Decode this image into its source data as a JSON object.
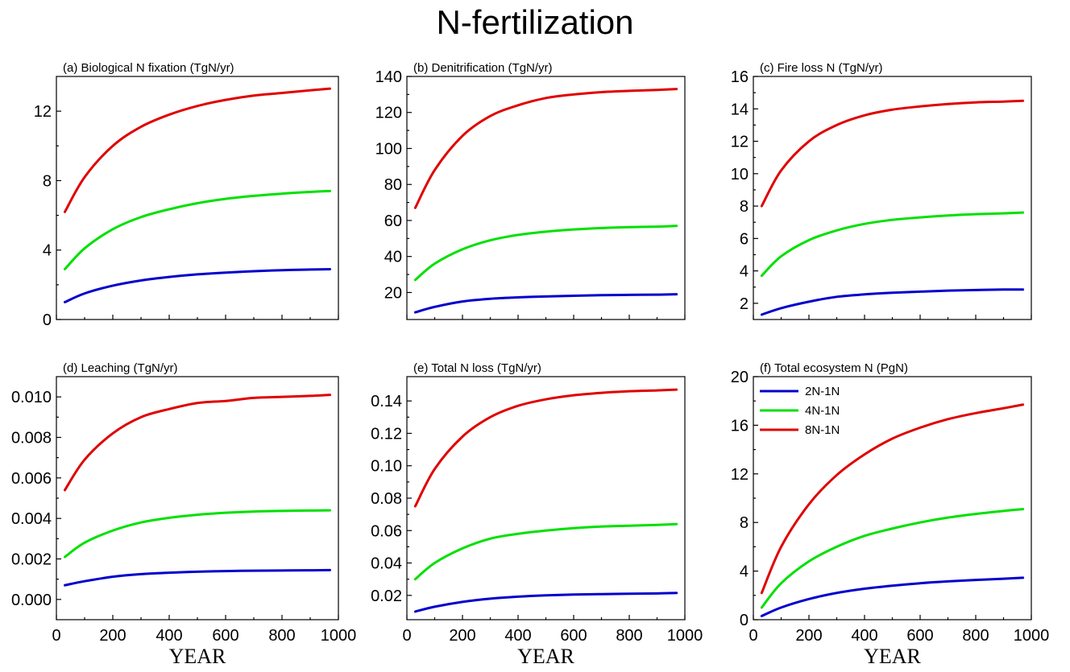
{
  "title": "N-fertilization",
  "colors": {
    "2N-1N": "#0000cc",
    "4N-1N": "#00e000",
    "8N-1N": "#e00000"
  },
  "chart_data": [
    {
      "type": "line",
      "title": "(a) Biological N fixation (TgN/yr)",
      "xlabel": "",
      "xlim": [
        0,
        1000
      ],
      "ylim": [
        0,
        14
      ],
      "yticks": [
        0,
        4,
        8,
        12
      ],
      "ytick_labels": [
        "0",
        "4",
        "8",
        "12"
      ],
      "xticks": [],
      "xtick_labels": [],
      "x": [
        30,
        100,
        200,
        300,
        400,
        500,
        600,
        700,
        800,
        900,
        970
      ],
      "series": [
        {
          "name": "2N-1N",
          "values": [
            1.0,
            1.5,
            1.95,
            2.25,
            2.45,
            2.6,
            2.7,
            2.78,
            2.84,
            2.88,
            2.9
          ]
        },
        {
          "name": "4N-1N",
          "values": [
            2.9,
            4.1,
            5.2,
            5.9,
            6.35,
            6.7,
            6.95,
            7.12,
            7.25,
            7.35,
            7.4
          ]
        },
        {
          "name": "8N-1N",
          "values": [
            6.2,
            8.2,
            10.0,
            11.1,
            11.8,
            12.3,
            12.65,
            12.9,
            13.05,
            13.2,
            13.3
          ]
        }
      ]
    },
    {
      "type": "line",
      "title": "(b) Denitrification (TgN/yr)",
      "xlabel": "",
      "xlim": [
        0,
        1000
      ],
      "ylim": [
        5,
        140
      ],
      "yticks": [
        20,
        40,
        60,
        80,
        100,
        120,
        140
      ],
      "ytick_labels": [
        "20",
        "40",
        "60",
        "80",
        "100",
        "120",
        "140"
      ],
      "xticks": [],
      "xtick_labels": [],
      "x": [
        30,
        100,
        200,
        300,
        400,
        500,
        600,
        700,
        800,
        900,
        970
      ],
      "series": [
        {
          "name": "2N-1N",
          "values": [
            9,
            12,
            15,
            16.5,
            17.3,
            17.8,
            18.2,
            18.5,
            18.7,
            18.8,
            19
          ]
        },
        {
          "name": "4N-1N",
          "values": [
            27,
            36,
            44,
            49,
            52,
            53.8,
            55,
            55.8,
            56.3,
            56.6,
            57
          ]
        },
        {
          "name": "8N-1N",
          "values": [
            67,
            88,
            107,
            118,
            124,
            128,
            130,
            131.3,
            132,
            132.5,
            133
          ]
        }
      ]
    },
    {
      "type": "line",
      "title": "(c) Fire loss N (TgN/yr)",
      "xlabel": "",
      "xlim": [
        0,
        1000
      ],
      "ylim": [
        1,
        16
      ],
      "yticks": [
        2,
        4,
        6,
        8,
        10,
        12,
        14,
        16
      ],
      "ytick_labels": [
        "2",
        "4",
        "6",
        "8",
        "10",
        "12",
        "14",
        "16"
      ],
      "xticks": [],
      "xtick_labels": [],
      "x": [
        30,
        100,
        200,
        300,
        400,
        500,
        600,
        700,
        800,
        900,
        970
      ],
      "series": [
        {
          "name": "2N-1N",
          "values": [
            1.3,
            1.7,
            2.1,
            2.4,
            2.55,
            2.65,
            2.72,
            2.78,
            2.82,
            2.85,
            2.85
          ]
        },
        {
          "name": "4N-1N",
          "values": [
            3.7,
            4.9,
            5.9,
            6.5,
            6.9,
            7.15,
            7.3,
            7.42,
            7.5,
            7.55,
            7.6
          ]
        },
        {
          "name": "8N-1N",
          "values": [
            8.0,
            10.2,
            12.0,
            13.0,
            13.6,
            13.95,
            14.15,
            14.3,
            14.4,
            14.45,
            14.5
          ]
        }
      ]
    },
    {
      "type": "line",
      "title": "(d) Leaching (TgN/yr)",
      "xlabel": "YEAR",
      "xlim": [
        0,
        1000
      ],
      "ylim": [
        -0.001,
        0.011
      ],
      "yticks": [
        0.0,
        0.002,
        0.004,
        0.006,
        0.008,
        0.01
      ],
      "ytick_labels": [
        "0.000",
        "0.002",
        "0.004",
        "0.006",
        "0.008",
        "0.010"
      ],
      "xticks": [
        0,
        200,
        400,
        600,
        800,
        1000
      ],
      "xtick_labels": [
        "0",
        "200",
        "400",
        "600",
        "800",
        "1000"
      ],
      "x": [
        30,
        100,
        200,
        300,
        400,
        500,
        600,
        700,
        800,
        900,
        970
      ],
      "series": [
        {
          "name": "2N-1N",
          "values": [
            0.0007,
            0.0009,
            0.00112,
            0.00125,
            0.00132,
            0.00137,
            0.0014,
            0.00142,
            0.00143,
            0.00144,
            0.00145
          ]
        },
        {
          "name": "4N-1N",
          "values": [
            0.0021,
            0.0028,
            0.0034,
            0.0038,
            0.00403,
            0.00418,
            0.00428,
            0.00434,
            0.00437,
            0.00439,
            0.0044
          ]
        },
        {
          "name": "8N-1N",
          "values": [
            0.0054,
            0.0069,
            0.0082,
            0.009,
            0.0094,
            0.0097,
            0.0098,
            0.00995,
            0.01,
            0.01005,
            0.0101
          ]
        }
      ]
    },
    {
      "type": "line",
      "title": "(e) Total N loss (TgN/yr)",
      "xlabel": "YEAR",
      "xlim": [
        0,
        1000
      ],
      "ylim": [
        0.005,
        0.155
      ],
      "yticks": [
        0.02,
        0.04,
        0.06,
        0.08,
        0.1,
        0.12,
        0.14
      ],
      "ytick_labels": [
        "0.02",
        "0.04",
        "0.06",
        "0.08",
        "0.10",
        "0.12",
        "0.14"
      ],
      "xticks": [
        0,
        200,
        400,
        600,
        800,
        1000
      ],
      "xtick_labels": [
        "0",
        "200",
        "400",
        "600",
        "800",
        "1000"
      ],
      "x": [
        30,
        100,
        200,
        300,
        400,
        500,
        600,
        700,
        800,
        900,
        970
      ],
      "series": [
        {
          "name": "2N-1N",
          "values": [
            0.01,
            0.013,
            0.016,
            0.018,
            0.0192,
            0.02,
            0.0205,
            0.0208,
            0.021,
            0.0212,
            0.0215
          ]
        },
        {
          "name": "4N-1N",
          "values": [
            0.03,
            0.04,
            0.049,
            0.055,
            0.058,
            0.06,
            0.0615,
            0.0625,
            0.063,
            0.0635,
            0.064
          ]
        },
        {
          "name": "8N-1N",
          "values": [
            0.075,
            0.098,
            0.118,
            0.13,
            0.137,
            0.141,
            0.1435,
            0.145,
            0.146,
            0.1465,
            0.147
          ]
        }
      ]
    },
    {
      "type": "line",
      "title": "(f) Total ecosystem N (PgN)",
      "xlabel": "YEAR",
      "xlim": [
        0,
        1000
      ],
      "ylim": [
        0,
        20
      ],
      "yticks": [
        0,
        4,
        8,
        12,
        16,
        20
      ],
      "ytick_labels": [
        "0",
        "4",
        "8",
        "12",
        "16",
        "20"
      ],
      "xticks": [
        0,
        200,
        400,
        600,
        800,
        1000
      ],
      "xtick_labels": [
        "0",
        "200",
        "400",
        "600",
        "800",
        "1000"
      ],
      "legend": {
        "position": "top-left",
        "entries": [
          "2N-1N",
          "4N-1N",
          "8N-1N"
        ]
      },
      "x": [
        30,
        100,
        200,
        300,
        400,
        500,
        600,
        700,
        800,
        900,
        970
      ],
      "series": [
        {
          "name": "2N-1N",
          "values": [
            0.3,
            1.0,
            1.7,
            2.2,
            2.55,
            2.8,
            3.0,
            3.15,
            3.27,
            3.37,
            3.45
          ]
        },
        {
          "name": "4N-1N",
          "values": [
            1.0,
            3.0,
            4.8,
            6.0,
            6.9,
            7.5,
            8.0,
            8.4,
            8.7,
            8.95,
            9.1
          ]
        },
        {
          "name": "8N-1N",
          "values": [
            2.2,
            6.0,
            9.5,
            11.9,
            13.6,
            14.9,
            15.8,
            16.5,
            17.0,
            17.4,
            17.7
          ]
        }
      ]
    }
  ]
}
